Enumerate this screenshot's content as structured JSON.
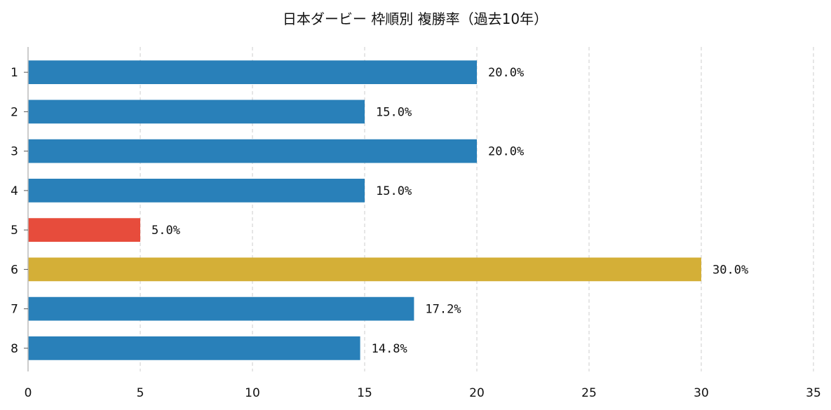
{
  "chart_data": {
    "type": "bar",
    "orientation": "horizontal",
    "title": "日本ダービー 枠順別 複勝率（過去10年）",
    "xlabel": "",
    "ylabel": "",
    "categories": [
      "1",
      "2",
      "3",
      "4",
      "5",
      "6",
      "7",
      "8"
    ],
    "values": [
      20.0,
      15.0,
      20.0,
      15.0,
      5.0,
      30.0,
      17.2,
      14.8
    ],
    "value_labels": [
      "20.0%",
      "15.0%",
      "20.0%",
      "15.0%",
      "5.0%",
      "30.0%",
      "17.2%",
      "14.8%"
    ],
    "bar_colors": [
      "#2980b9",
      "#2980b9",
      "#2980b9",
      "#2980b9",
      "#e74c3c",
      "#d4af37",
      "#2980b9",
      "#2980b9"
    ],
    "xlim": [
      0,
      35
    ],
    "xticks": [
      "0",
      "5",
      "10",
      "15",
      "20",
      "25",
      "30",
      "35"
    ],
    "grid": "vertical-dashed",
    "legend": "none"
  }
}
